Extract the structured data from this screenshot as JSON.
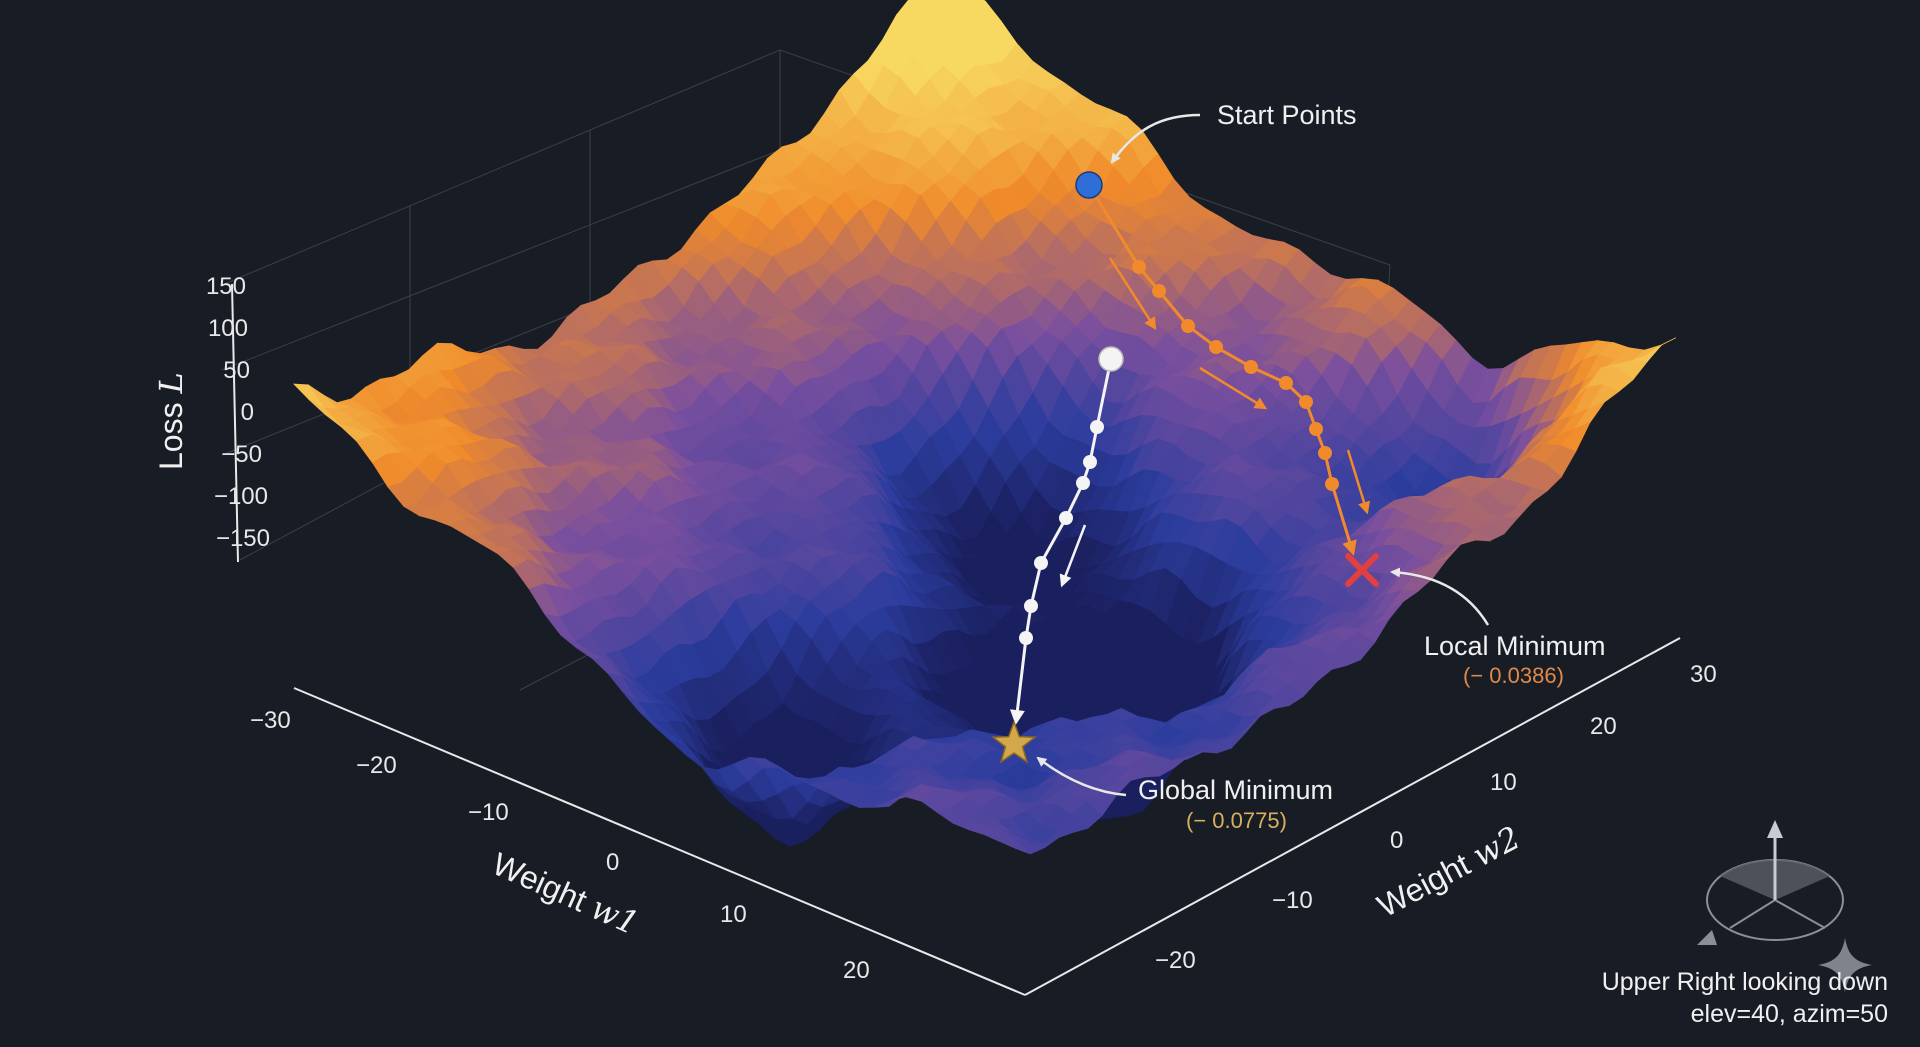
{
  "chart_data": {
    "type": "surface3d",
    "zlabel": "Loss",
    "zlabel_symbol": "L",
    "xlabel": "Weight",
    "xlabel_symbol": "w1",
    "ylabel": "Weight",
    "ylabel_symbol": "w2",
    "x_ticks": [
      "−30",
      "−20",
      "−10",
      "0",
      "10",
      "20"
    ],
    "y_ticks": [
      "−20",
      "−10",
      "0",
      "10",
      "20",
      "30"
    ],
    "z_ticks": [
      "150",
      "100",
      "50",
      "0",
      "−50",
      "−100",
      "−150"
    ],
    "xlim": [
      -30,
      30
    ],
    "ylim": [
      -30,
      30
    ],
    "zlim": [
      -150,
      150
    ],
    "colormap": [
      "#1a1f5e",
      "#2c3d9e",
      "#7a4f9e",
      "#f08a2a",
      "#f7d860"
    ],
    "annotations": {
      "start": "Start Points",
      "local_min": "Local Minimum",
      "local_min_value": "(− 0.0386)",
      "global_min": "Global Minimum",
      "global_min_value": "(− 0.0775)"
    },
    "paths": [
      {
        "color": "#f4f4f4",
        "start_color": "#f4f4f4",
        "end": "star"
      },
      {
        "color": "#f08a2a",
        "start_color": "#2d6fd6",
        "end": "cross"
      }
    ],
    "colors": {
      "global_min": "#d4a84a",
      "local_min": "#e04040",
      "local_value": "#e0894a",
      "global_value": "#d8b060"
    },
    "view": {
      "caption": "Upper Right looking down",
      "params": "elev=40, azim=50",
      "elev": 40,
      "azim": 50
    }
  }
}
